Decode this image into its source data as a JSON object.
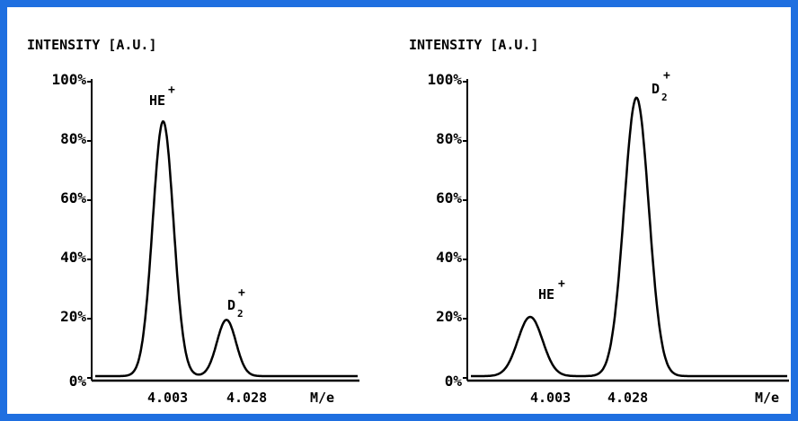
{
  "colors": {
    "border": "#1f6fe0",
    "ink": "#000000",
    "background": "#ffffff"
  },
  "chart_data": [
    {
      "type": "line",
      "ylabel": "INTENSITY [A.U.]",
      "xlabel": "M/e",
      "yticks": [
        "100%",
        "80%",
        "60%",
        "40%",
        "20%",
        "0%"
      ],
      "xtick_labels": [
        "4.003",
        "4.028"
      ],
      "xtick_values": [
        4.003,
        4.028
      ],
      "xlim": [
        3.988,
        4.046
      ],
      "ylim": [
        0,
        100
      ],
      "grid": false,
      "peaks": [
        {
          "label": "HE",
          "charge": "+",
          "subscript": "",
          "center": 4.003,
          "height": 86,
          "width": 0.0023
        },
        {
          "label": "D",
          "charge": "+",
          "subscript": "2",
          "center": 4.017,
          "height": 19,
          "width": 0.0021
        }
      ]
    },
    {
      "type": "line",
      "ylabel": "INTENSITY [A.U.]",
      "xlabel": "M/e",
      "yticks": [
        "100%",
        "80%",
        "60%",
        "40%",
        "20%",
        "0%"
      ],
      "xtick_labels": [
        "4.003",
        "4.028"
      ],
      "xtick_values": [
        4.003,
        4.028
      ],
      "xlim": [
        3.991,
        4.055
      ],
      "ylim": [
        0,
        100
      ],
      "grid": false,
      "peaks": [
        {
          "label": "HE",
          "charge": "+",
          "subscript": "",
          "center": 4.003,
          "height": 20,
          "width": 0.0025
        },
        {
          "label": "D",
          "charge": "+",
          "subscript": "2",
          "center": 4.0245,
          "height": 94,
          "width": 0.0025
        }
      ]
    }
  ]
}
